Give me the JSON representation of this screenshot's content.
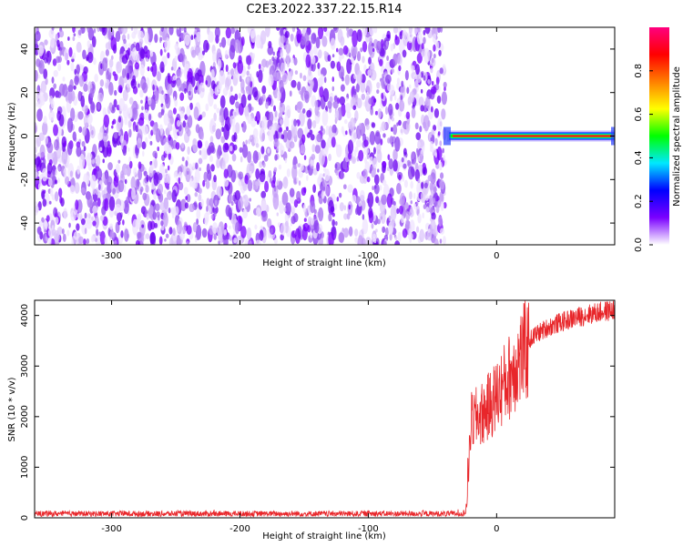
{
  "title": "C2E3.2022.337.22.15.R14",
  "chart_data": [
    {
      "type": "heatmap",
      "xlabel": "Height of straight line (km)",
      "ylabel": "Frequency (Hz)",
      "xlim": [
        -360,
        92
      ],
      "ylim": [
        -50,
        50
      ],
      "x_ticks": [
        "-300",
        "-200",
        "-100",
        "0"
      ],
      "y_ticks": [
        "-40",
        "-20",
        "0",
        "20",
        "40"
      ],
      "noise_region_x": [
        -360,
        -40
      ],
      "signal_region_x": [
        -40,
        92
      ],
      "signal_frequency_hz": 0,
      "colorbar": {
        "label": "Normalized spectral amplitude",
        "range": [
          0,
          1
        ],
        "ticks": [
          "0.0",
          "0.2",
          "0.4",
          "0.6",
          "0.8"
        ],
        "colors": [
          "#ffffff",
          "#7a00ff",
          "#0000ff",
          "#00e8ff",
          "#00ff00",
          "#ffff00",
          "#ff7f00",
          "#ff0000",
          "#ff007f"
        ]
      }
    },
    {
      "type": "line",
      "xlabel": "Height of straight line (km)",
      "ylabel": "SNR (10 * v/v)",
      "xlim": [
        -360,
        92
      ],
      "ylim": [
        0,
        4300
      ],
      "x_ticks": [
        "-300",
        "-200",
        "-100",
        "0"
      ],
      "y_ticks": [
        "0",
        "1000",
        "2000",
        "3000",
        "4000"
      ],
      "color": "#e8262a",
      "series": [
        {
          "x": [
            -360,
            -300,
            -200,
            -100,
            -30,
            -24,
            -22,
            -20,
            -15,
            -10,
            -5,
            0,
            5,
            10,
            15,
            20,
            30,
            40,
            50,
            60,
            70,
            80,
            92
          ],
          "values": [
            80,
            80,
            80,
            80,
            80,
            100,
            900,
            2000,
            2100,
            2200,
            2350,
            2550,
            2750,
            2950,
            3200,
            3400,
            3650,
            3800,
            3900,
            3980,
            4050,
            4100,
            4150
          ]
        }
      ]
    }
  ]
}
